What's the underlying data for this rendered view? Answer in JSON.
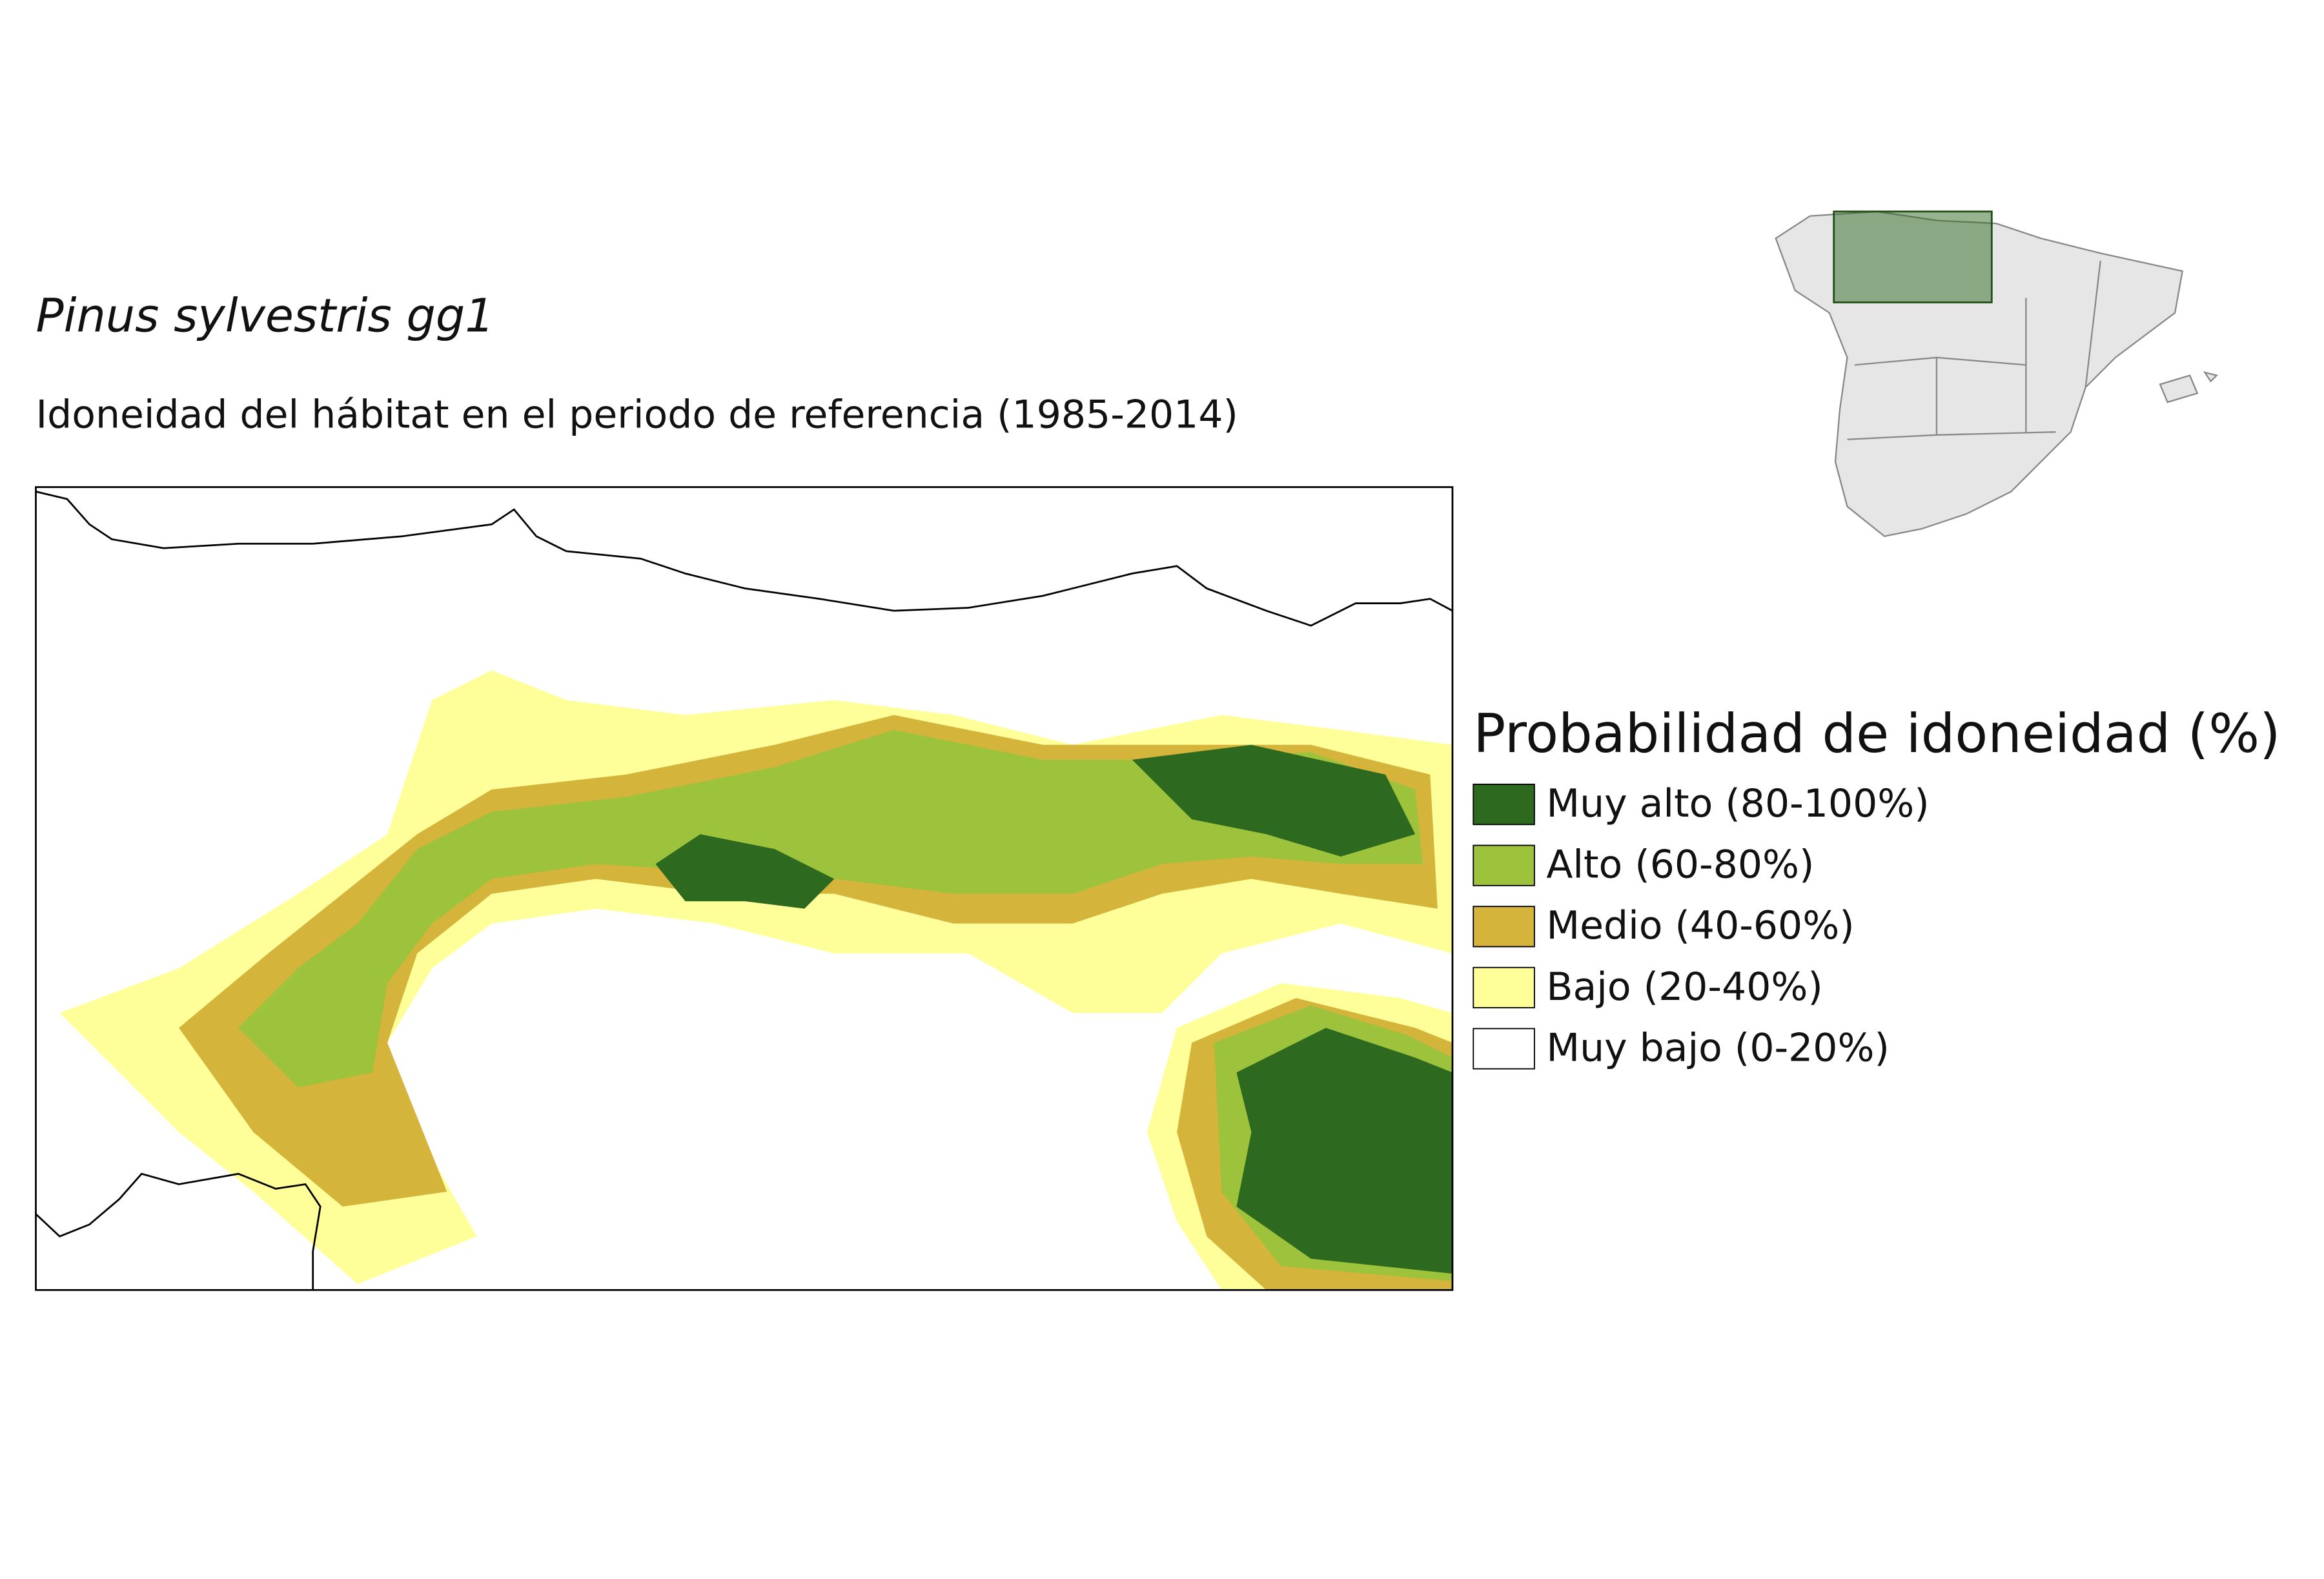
{
  "title": "Pinus sylvestris gg1",
  "subtitle": "Idoneidad del hábitat en el periodo de referencia (1985-2014)",
  "legend": {
    "title": "Probabilidad de idoneidad (%)",
    "items": [
      {
        "label": "Muy alto (80-100%)",
        "color": "#2d6a1f"
      },
      {
        "label": "Alto (60-80%)",
        "color": "#9dc23b"
      },
      {
        "label": "Medio (40-60%)",
        "color": "#d4b43a"
      },
      {
        "label": "Bajo (20-40%)",
        "color": "#ffff99"
      },
      {
        "label": "Muy bajo (0-20%)",
        "color": "#ffffff"
      }
    ]
  }
}
